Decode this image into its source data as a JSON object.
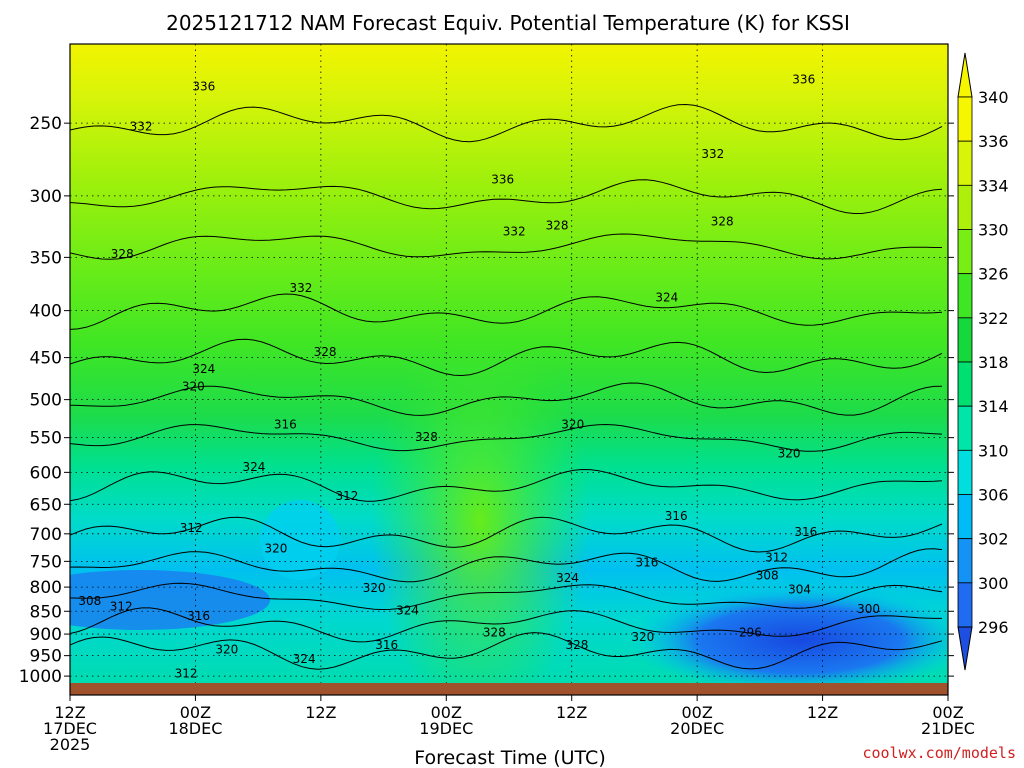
{
  "chart_data": {
    "type": "heatmap",
    "title": "2025121712 NAM Forecast Equiv. Potential Temperature (K) for KSSI",
    "xlabel": "Forecast Time (UTC)",
    "ylabel": "",
    "y_scale": "log",
    "ylim": [
      1020,
      205
    ],
    "xlim": [
      0,
      84
    ],
    "x_ticks": [
      {
        "hour": 0,
        "lines": [
          "12Z",
          "17DEC",
          "2025"
        ]
      },
      {
        "hour": 12,
        "lines": [
          "00Z",
          "18DEC"
        ]
      },
      {
        "hour": 24,
        "lines": [
          "12Z"
        ]
      },
      {
        "hour": 36,
        "lines": [
          "00Z",
          "19DEC"
        ]
      },
      {
        "hour": 48,
        "lines": [
          "12Z"
        ]
      },
      {
        "hour": 60,
        "lines": [
          "00Z",
          "20DEC"
        ]
      },
      {
        "hour": 72,
        "lines": [
          "12Z"
        ]
      },
      {
        "hour": 84,
        "lines": [
          "00Z",
          "21DEC"
        ]
      }
    ],
    "y_ticks": [
      1000,
      950,
      900,
      850,
      800,
      750,
      700,
      650,
      600,
      550,
      500,
      450,
      400,
      350,
      300,
      250
    ],
    "grid": true,
    "colorbar": {
      "levels": [
        296,
        300,
        302,
        306,
        310,
        314,
        318,
        322,
        326,
        330,
        334,
        336,
        340
      ],
      "colors": [
        "#1d4fe0",
        "#1f6cf0",
        "#1593f5",
        "#00bcf6",
        "#00dede",
        "#00e6a8",
        "#00e070",
        "#14d83c",
        "#3fe624",
        "#78ee14",
        "#aef00c",
        "#d8f408",
        "#f6f600"
      ]
    },
    "contour_labels": [
      {
        "hour": 12.8,
        "p": 228,
        "text": "336"
      },
      {
        "hour": 6.8,
        "p": 252,
        "text": "332"
      },
      {
        "hour": 41.4,
        "p": 288,
        "text": "336"
      },
      {
        "hour": 70.2,
        "p": 224,
        "text": "336"
      },
      {
        "hour": 61.5,
        "p": 270,
        "text": "332"
      },
      {
        "hour": 42.5,
        "p": 328,
        "text": "332"
      },
      {
        "hour": 46.6,
        "p": 323,
        "text": "328"
      },
      {
        "hour": 62.4,
        "p": 320,
        "text": "328"
      },
      {
        "hour": 5.0,
        "p": 347,
        "text": "328"
      },
      {
        "hour": 22.1,
        "p": 378,
        "text": "332"
      },
      {
        "hour": 57.1,
        "p": 387,
        "text": "324"
      },
      {
        "hour": 24.4,
        "p": 444,
        "text": "328"
      },
      {
        "hour": 12.8,
        "p": 463,
        "text": "324"
      },
      {
        "hour": 11.8,
        "p": 484,
        "text": "320"
      },
      {
        "hour": 20.6,
        "p": 532,
        "text": "316"
      },
      {
        "hour": 48.1,
        "p": 532,
        "text": "320"
      },
      {
        "hour": 34.1,
        "p": 549,
        "text": "328"
      },
      {
        "hour": 68.8,
        "p": 572,
        "text": "320"
      },
      {
        "hour": 17.6,
        "p": 592,
        "text": "324"
      },
      {
        "hour": 26.5,
        "p": 637,
        "text": "312"
      },
      {
        "hour": 58.0,
        "p": 669,
        "text": "316"
      },
      {
        "hour": 11.6,
        "p": 690,
        "text": "312"
      },
      {
        "hour": 70.4,
        "p": 697,
        "text": "316"
      },
      {
        "hour": 19.7,
        "p": 726,
        "text": "320"
      },
      {
        "hour": 67.6,
        "p": 743,
        "text": "312"
      },
      {
        "hour": 55.2,
        "p": 752,
        "text": "316"
      },
      {
        "hour": 66.7,
        "p": 777,
        "text": "308"
      },
      {
        "hour": 47.6,
        "p": 782,
        "text": "324"
      },
      {
        "hour": 29.1,
        "p": 802,
        "text": "320"
      },
      {
        "hour": 69.8,
        "p": 805,
        "text": "304"
      },
      {
        "hour": 1.9,
        "p": 828,
        "text": "308"
      },
      {
        "hour": 4.9,
        "p": 840,
        "text": "312"
      },
      {
        "hour": 32.3,
        "p": 848,
        "text": "324"
      },
      {
        "hour": 12.3,
        "p": 860,
        "text": "316"
      },
      {
        "hour": 76.4,
        "p": 845,
        "text": "300"
      },
      {
        "hour": 40.6,
        "p": 897,
        "text": "328"
      },
      {
        "hour": 65.1,
        "p": 897,
        "text": "296"
      },
      {
        "hour": 30.3,
        "p": 925,
        "text": "316"
      },
      {
        "hour": 54.8,
        "p": 907,
        "text": "320"
      },
      {
        "hour": 48.5,
        "p": 925,
        "text": "328"
      },
      {
        "hour": 15.0,
        "p": 935,
        "text": "320"
      },
      {
        "hour": 22.4,
        "p": 958,
        "text": "324"
      },
      {
        "hour": 11.1,
        "p": 993,
        "text": "312"
      }
    ]
  },
  "credit": "coolwx.com/models"
}
